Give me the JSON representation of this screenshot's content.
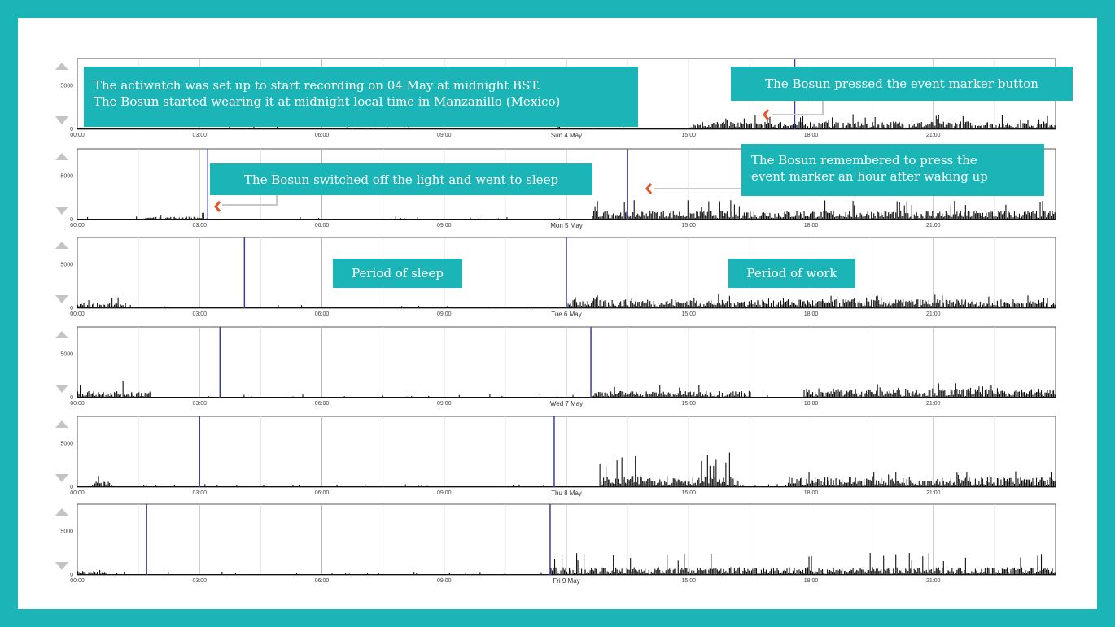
{
  "colors": {
    "frame": "#1bb5b8",
    "callout": "#1bb5b8",
    "activity": "#111111",
    "marker": "#3d3d9a",
    "arrow": "#e8542a"
  },
  "callouts": {
    "setup_line1": "The actiwatch was set up to start recording on 04 May at midnight BST.",
    "setup_line2": "The Bosun started wearing it at midnight local time in Manzanillo (Mexico)",
    "pressed": "The Bosun pressed the event marker button",
    "light_off": "The Bosun switched off the light and went to sleep",
    "remembered_line1": "The Bosun remembered to press the",
    "remembered_line2": "event marker an hour after waking up",
    "sleep": "Period of sleep",
    "work": "Period of work"
  },
  "chart_data": [
    {
      "type": "bar",
      "date_label": "Sun 4 May",
      "x_ticks": [
        "00:00",
        "03:00",
        "06:00",
        "09:00",
        "12:00",
        "15:00",
        "18:00",
        "21:00"
      ],
      "y_ticks": [
        "0",
        "5000"
      ],
      "xlim": [
        0,
        24
      ],
      "ylim": [
        0,
        8000
      ],
      "event_markers_h": [
        17.6
      ],
      "activity_segments": [
        {
          "start": 15.0,
          "end": 24.0,
          "level": 700,
          "peak": 1700
        }
      ]
    },
    {
      "type": "bar",
      "date_label": "Mon 5 May",
      "x_ticks": [
        "00:00",
        "03:00",
        "06:00",
        "09:00",
        "12:00",
        "15:00",
        "18:00",
        "21:00"
      ],
      "y_ticks": [
        "0",
        "5000"
      ],
      "xlim": [
        0,
        24
      ],
      "ylim": [
        0,
        8000
      ],
      "event_markers_h": [
        3.2,
        13.5
      ],
      "activity_segments": [
        {
          "start": 1.6,
          "end": 3.2,
          "level": 250,
          "peak": 800
        },
        {
          "start": 12.6,
          "end": 24.0,
          "level": 800,
          "peak": 2200
        }
      ]
    },
    {
      "type": "bar",
      "date_label": "Tue 6 May",
      "x_ticks": [
        "00:00",
        "03:00",
        "06:00",
        "09:00",
        "12:00",
        "15:00",
        "18:00",
        "21:00"
      ],
      "y_ticks": [
        "0",
        "5000"
      ],
      "xlim": [
        0,
        24
      ],
      "ylim": [
        0,
        8000
      ],
      "event_markers_h": [
        4.1,
        12.0
      ],
      "activity_segments": [
        {
          "start": 0.0,
          "end": 1.2,
          "level": 500,
          "peak": 1300
        },
        {
          "start": 12.0,
          "end": 24.0,
          "level": 800,
          "peak": 1600
        }
      ]
    },
    {
      "type": "bar",
      "date_label": "Wed 7 May",
      "x_ticks": [
        "00:00",
        "03:00",
        "06:00",
        "09:00",
        "12:00",
        "15:00",
        "18:00",
        "21:00"
      ],
      "y_ticks": [
        "0",
        "5000"
      ],
      "xlim": [
        0,
        24
      ],
      "ylim": [
        0,
        8000
      ],
      "event_markers_h": [
        3.5,
        12.6
      ],
      "activity_segments": [
        {
          "start": 0.0,
          "end": 1.8,
          "level": 600,
          "peak": 1900
        },
        {
          "start": 12.6,
          "end": 16.5,
          "level": 600,
          "peak": 1600
        },
        {
          "start": 17.8,
          "end": 24.0,
          "level": 800,
          "peak": 1700
        }
      ]
    },
    {
      "type": "bar",
      "date_label": "Thu 8 May",
      "x_ticks": [
        "00:00",
        "03:00",
        "06:00",
        "09:00",
        "12:00",
        "15:00",
        "18:00",
        "21:00"
      ],
      "y_ticks": [
        "0",
        "5000"
      ],
      "xlim": [
        0,
        24
      ],
      "ylim": [
        0,
        8000
      ],
      "event_markers_h": [
        3.0,
        11.7
      ],
      "activity_segments": [
        {
          "start": 0.3,
          "end": 0.8,
          "level": 500,
          "peak": 1600
        },
        {
          "start": 12.8,
          "end": 16.2,
          "level": 1000,
          "peak": 4000
        },
        {
          "start": 17.4,
          "end": 24.0,
          "level": 900,
          "peak": 2000
        }
      ]
    },
    {
      "type": "bar",
      "date_label": "Fri 9 May",
      "x_ticks": [
        "00:00",
        "03:00",
        "06:00",
        "09:00",
        "12:00",
        "15:00",
        "18:00",
        "21:00"
      ],
      "y_ticks": [
        "0",
        "5000"
      ],
      "xlim": [
        0,
        24
      ],
      "ylim": [
        0,
        8000
      ],
      "event_markers_h": [
        1.7,
        11.6
      ],
      "activity_segments": [
        {
          "start": 0.0,
          "end": 0.7,
          "level": 350,
          "peak": 900
        },
        {
          "start": 11.6,
          "end": 24.0,
          "level": 700,
          "peak": 2600
        }
      ]
    }
  ]
}
